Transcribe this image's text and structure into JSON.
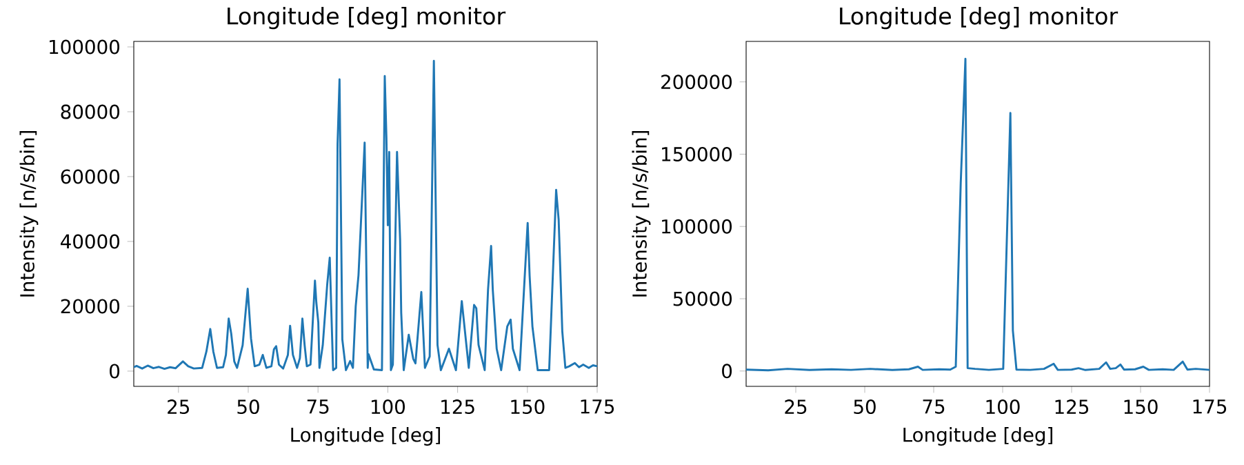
{
  "chart_data": [
    {
      "type": "line",
      "title": "Longitude [deg] monitor",
      "xlabel": "Longitude [deg]",
      "ylabel": "Intensity [n/s/bin]",
      "x": [
        9,
        10,
        12,
        14,
        16,
        18,
        20,
        22,
        24,
        26.6,
        28.5,
        30.5,
        33.5,
        35,
        36.4,
        37.5,
        38.8,
        41,
        42,
        43,
        43.9,
        45,
        46,
        48,
        49.8,
        51,
        52.3,
        54,
        55.2,
        56.5,
        58.3,
        59.2,
        60,
        61,
        62.5,
        64.2,
        65,
        66,
        67.5,
        68.5,
        69.4,
        70.2,
        71,
        72.3,
        73.9,
        74.4,
        75.1,
        75.5,
        76.7,
        78.3,
        79.2,
        80.4,
        81.5,
        82,
        82.7,
        83.7,
        85,
        86.5,
        87.5,
        88.5,
        89.5,
        91.7,
        92.8,
        93.1,
        95,
        97.9,
        98.9,
        99.5,
        100,
        100.5,
        101.1,
        101.8,
        103.3,
        104.4,
        104.8,
        105.7,
        107.5,
        109.1,
        109.9,
        112,
        113.3,
        115,
        116.5,
        117.8,
        119,
        121.9,
        124.4,
        126.5,
        129,
        130.9,
        131.7,
        132.5,
        134.7,
        135.9,
        137,
        137.6,
        139,
        140.6,
        142.8,
        144,
        144.8,
        147.2,
        150.1,
        150.8,
        151.8,
        153.7,
        157.8,
        160.3,
        161.2,
        161.7,
        162.5,
        163.6,
        165,
        167,
        168.5,
        170,
        172,
        173.5,
        175
      ],
      "series": [
        {
          "color": "#1f77b4",
          "values": [
            1200,
            1600,
            800,
            1700,
            900,
            1300,
            700,
            1200,
            900,
            3000,
            1500,
            800,
            1000,
            6000,
            13000,
            6000,
            1000,
            1200,
            5000,
            16200,
            11600,
            3000,
            1000,
            8000,
            25400,
            10000,
            1500,
            2000,
            5000,
            1000,
            1500,
            6700,
            7700,
            2000,
            800,
            5000,
            14000,
            5000,
            1000,
            4000,
            16200,
            8000,
            1500,
            2000,
            27900,
            21100,
            15000,
            1000,
            8000,
            26800,
            35000,
            300,
            1000,
            70000,
            90000,
            9800,
            300,
            3100,
            1000,
            20000,
            29600,
            70500,
            1000,
            5200,
            500,
            300,
            91000,
            71900,
            45000,
            67600,
            300,
            2000,
            67600,
            40700,
            18000,
            300,
            11200,
            3800,
            2400,
            24400,
            1000,
            4500,
            95700,
            8100,
            300,
            6900,
            300,
            21600,
            1000,
            20400,
            19400,
            8100,
            300,
            25100,
            38600,
            25100,
            6900,
            300,
            13800,
            15900,
            6900,
            300,
            45700,
            29400,
            13800,
            300,
            300,
            55900,
            46700,
            33600,
            12300,
            1000,
            1500,
            2500,
            1200,
            2000,
            1000,
            1800,
            1500
          ]
        }
      ],
      "xlim": [
        9,
        175
      ],
      "ylim": [
        -4700,
        101700
      ],
      "xticks": [
        25,
        50,
        75,
        100,
        125,
        150,
        175
      ],
      "yticks": [
        0,
        20000,
        40000,
        60000,
        80000,
        100000
      ]
    },
    {
      "type": "line",
      "title": "Longitude [deg] monitor",
      "xlabel": "Longitude [deg]",
      "ylabel": "Intensity [n/s/bin]",
      "x": [
        7,
        15,
        22,
        30,
        38,
        45,
        52,
        60,
        66,
        69.3,
        71,
        77,
        81,
        83,
        84.8,
        86.5,
        87.3,
        90,
        95,
        100.2,
        102.8,
        103.7,
        105,
        110,
        115,
        118.5,
        120,
        125,
        127.5,
        130,
        135,
        137.5,
        139,
        141,
        142.7,
        144,
        148,
        151,
        153,
        158,
        162,
        165.3,
        167,
        170,
        175
      ],
      "series": [
        {
          "color": "#1f77b4",
          "values": [
            1000,
            500,
            1500,
            700,
            1200,
            800,
            1500,
            700,
            1200,
            3000,
            800,
            1200,
            1000,
            3000,
            130000,
            216000,
            2000,
            1500,
            800,
            1500,
            178500,
            28000,
            1000,
            800,
            1500,
            5000,
            800,
            1000,
            2000,
            700,
            1500,
            6000,
            1500,
            2000,
            4500,
            1000,
            1200,
            3000,
            800,
            1200,
            800,
            6500,
            1000,
            1500,
            800
          ]
        }
      ],
      "xlim": [
        7,
        175
      ],
      "ylim": [
        -10600,
        228000
      ],
      "xticks": [
        25,
        50,
        75,
        100,
        125,
        150,
        175
      ],
      "yticks": [
        0,
        50000,
        100000,
        150000,
        200000
      ]
    }
  ]
}
